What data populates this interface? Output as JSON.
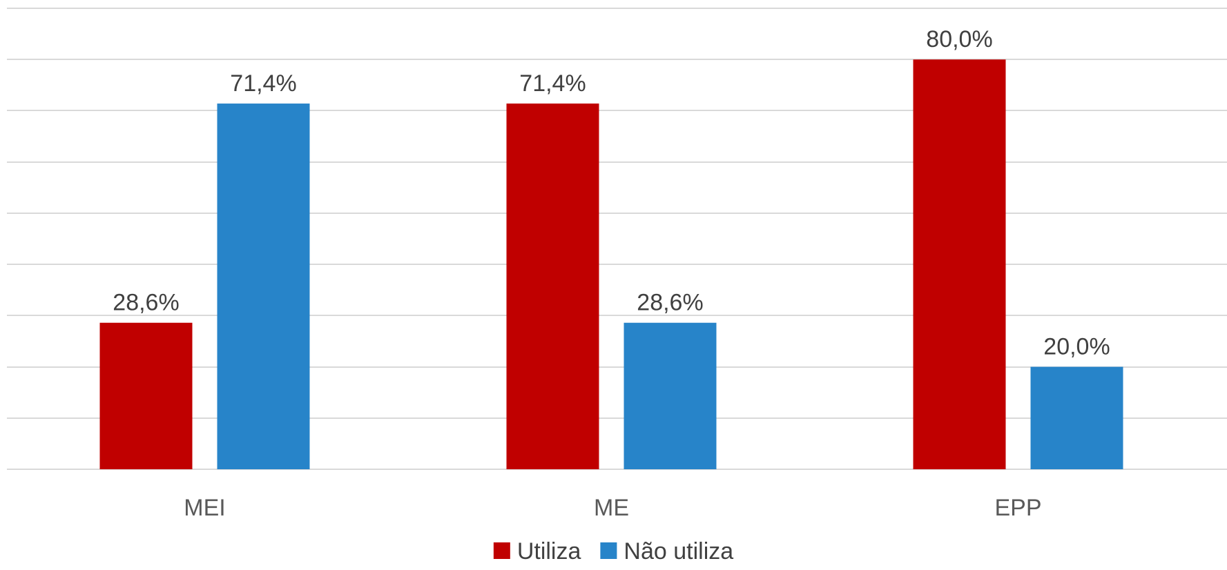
{
  "chart_data": {
    "type": "bar",
    "title": "",
    "xlabel": "",
    "ylabel": "",
    "ylim": [
      0,
      90
    ],
    "grid": true,
    "legend_position": "bottom",
    "categories": [
      "MEI",
      "ME",
      "EPP"
    ],
    "series": [
      {
        "name": "Utiliza",
        "color": "#c00000",
        "values": [
          28.6,
          71.4,
          80.0
        ],
        "labels": [
          "28,6%",
          "71,4%",
          "80,0%"
        ]
      },
      {
        "name": "Não utiliza",
        "color": "#2784c9",
        "values": [
          71.4,
          28.6,
          20.0
        ],
        "labels": [
          "71,4%",
          "28,6%",
          "20,0%"
        ]
      }
    ]
  }
}
